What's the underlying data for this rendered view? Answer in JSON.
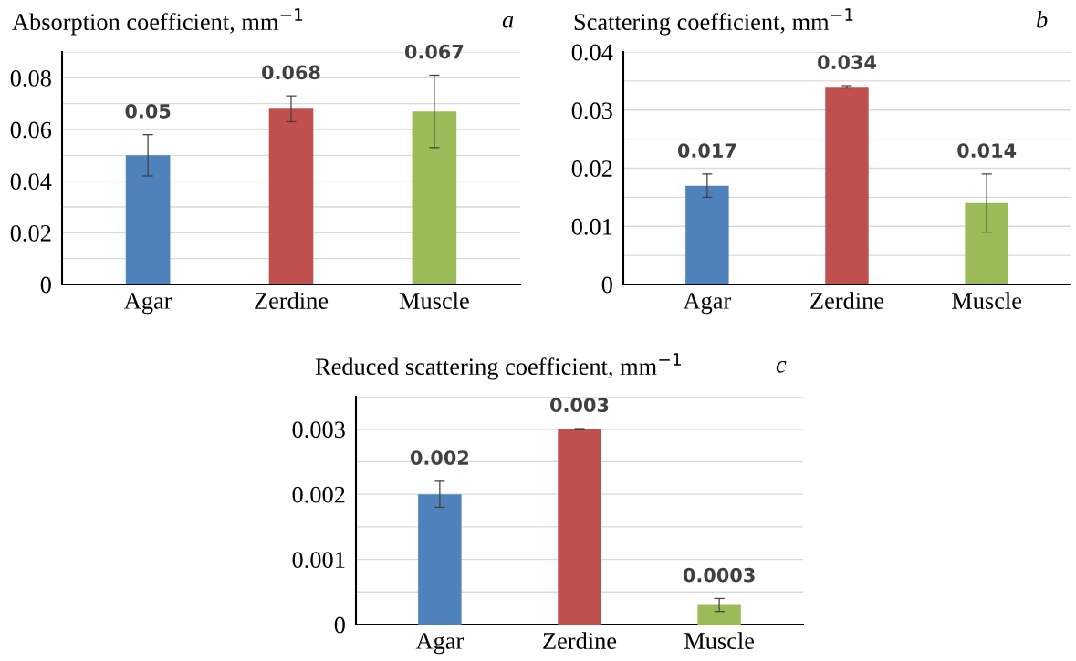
{
  "chart_data": [
    {
      "type": "bar",
      "title": "Absorption coefficient, mm$^{−1}$",
      "annotations": [
        "a"
      ],
      "categories": [
        "Agar",
        "Zerdine",
        "Muscle"
      ],
      "values": [
        0.05,
        0.068,
        0.067
      ],
      "errors": [
        0.008,
        0.005,
        0.014
      ],
      "colors": [
        "#4f81bd",
        "#c0504d",
        "#9bbb59"
      ],
      "ylim": [
        0,
        0.09
      ],
      "yticks": [
        0,
        {
          "value": 0.01,
          "label": null
        },
        0.02,
        {
          "value": 0.03,
          "label": null
        },
        0.04,
        {
          "value": 0.05,
          "label": null
        },
        0.06,
        {
          "value": 0.07,
          "label": null
        },
        0.08,
        {
          "value": 0.09,
          "label": null
        }
      ],
      "grid": "y",
      "data_labels": true
    },
    {
      "type": "bar",
      "title": "Scattering coefficient, mm$^{−1}$",
      "annotations": [
        "b"
      ],
      "categories": [
        "Agar",
        "Zerdine",
        "Muscle"
      ],
      "values": [
        0.017,
        0.034,
        0.014
      ],
      "errors": [
        0.002,
        0.0002,
        0.005
      ],
      "colors": [
        "#4f81bd",
        "#c0504d",
        "#9bbb59"
      ],
      "ylim": [
        0,
        0.04
      ],
      "yticks": [
        0,
        {
          "value": 0.005,
          "label": null
        },
        0.01,
        {
          "value": 0.015,
          "label": null
        },
        0.02,
        {
          "value": 0.025,
          "label": null
        },
        0.03,
        {
          "value": 0.035,
          "label": null
        },
        0.04
      ],
      "grid": "y",
      "data_labels": true
    },
    {
      "type": "bar",
      "title": "Reduced scattering coefficient, mm$^{−1}$",
      "annotations": [
        "c"
      ],
      "categories": [
        "Agar",
        "Zerdine",
        "Muscle"
      ],
      "values": [
        0.002,
        0.003,
        0.0003
      ],
      "errors": [
        0.0002,
        1e-05,
        0.0001
      ],
      "colors": [
        "#4f81bd",
        "#c0504d",
        "#9bbb59"
      ],
      "ylim": [
        0,
        0.0035
      ],
      "yticks": [
        0,
        {
          "value": 0.0005,
          "label": null
        },
        0.001,
        {
          "value": 0.0015,
          "label": null
        },
        0.002,
        {
          "value": 0.0025,
          "label": null
        },
        0.003,
        {
          "value": 0.0035,
          "label": null
        }
      ],
      "grid": "y",
      "data_labels": true
    }
  ]
}
